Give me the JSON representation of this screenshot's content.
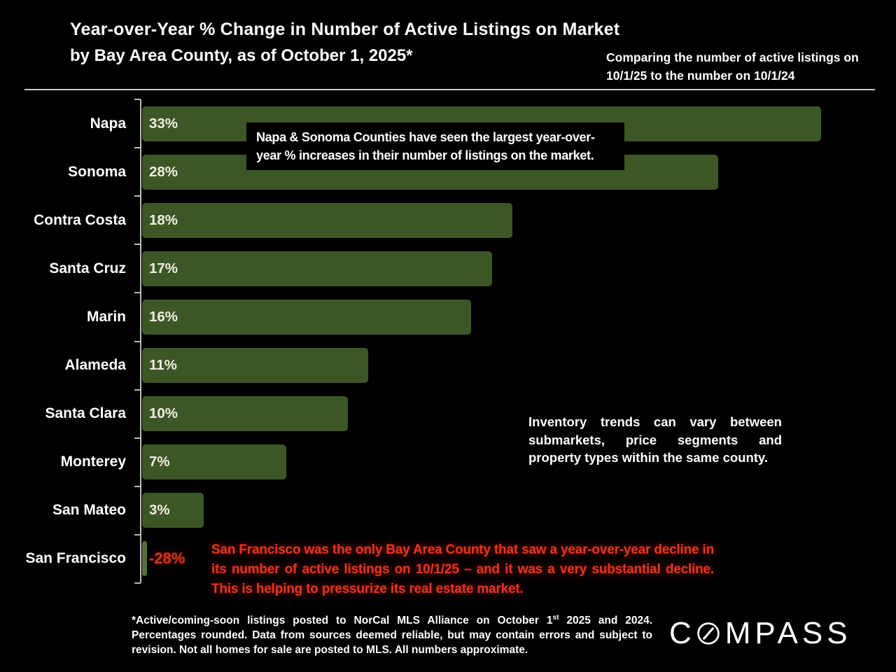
{
  "header": {
    "title": "Year-over-Year % Change in Number of Active Listings on Market",
    "subtitle": "by Bay Area County, as of October 1, 2025*",
    "comparing_note": "Comparing the number of active listings on 10/1/25 to the number on 10/1/24"
  },
  "notes": {
    "napa_sonoma": "Napa & Sonoma Counties have seen the largest year-over-year % increases in their number of listings on the market.",
    "inventory": "Inventory trends can vary between submarkets, price segments and property types within the same county.",
    "san_francisco": "San Francisco was the only Bay Area County that saw a year-over-year decline in its number of active listings on 10/1/25 – and it was a very substantial decline. This is helping to pressurize its real estate market."
  },
  "footnote": {
    "part1": "*Active/coming-soon listings posted to NorCal MLS Alliance on October 1",
    "sup": "st",
    "part2": " 2025 and 2024. Percentages rounded. Data from sources deemed reliable, but may contain errors and subject to revision. Not all homes for sale are posted to MLS. All numbers approximate."
  },
  "logo": {
    "name": "COMPASS",
    "pre": "C",
    "post": "MPASS"
  },
  "colors": {
    "background": "#000000",
    "bar_green": "#3d5626",
    "negative_bar_green": "#55713a",
    "axis_gray": "#b9b9b9",
    "value_text": "#eef0e2",
    "red_text": "#df351f",
    "white_text": "#ffffff"
  },
  "chart_data": {
    "type": "bar",
    "orientation": "horizontal",
    "title": "Year-over-Year % Change in Number of Active Listings on Market by Bay Area County, as of October 1, 2025",
    "categories": [
      "Napa",
      "Sonoma",
      "Contra Costa",
      "Santa Cruz",
      "Marin",
      "Alameda",
      "Santa Clara",
      "Monterey",
      "San Mateo",
      "San Francisco"
    ],
    "values": [
      33,
      28,
      18,
      17,
      16,
      11,
      10,
      7,
      3,
      -28
    ],
    "value_labels": [
      "33%",
      "28%",
      "18%",
      "17%",
      "16%",
      "11%",
      "10%",
      "7%",
      "3%",
      "-28%"
    ],
    "xlabel": "",
    "ylabel": "",
    "xlim": [
      0,
      36.5
    ],
    "grid": false,
    "legend": false,
    "bar_color": "#3d5626",
    "value_label_position": "inside-start"
  }
}
